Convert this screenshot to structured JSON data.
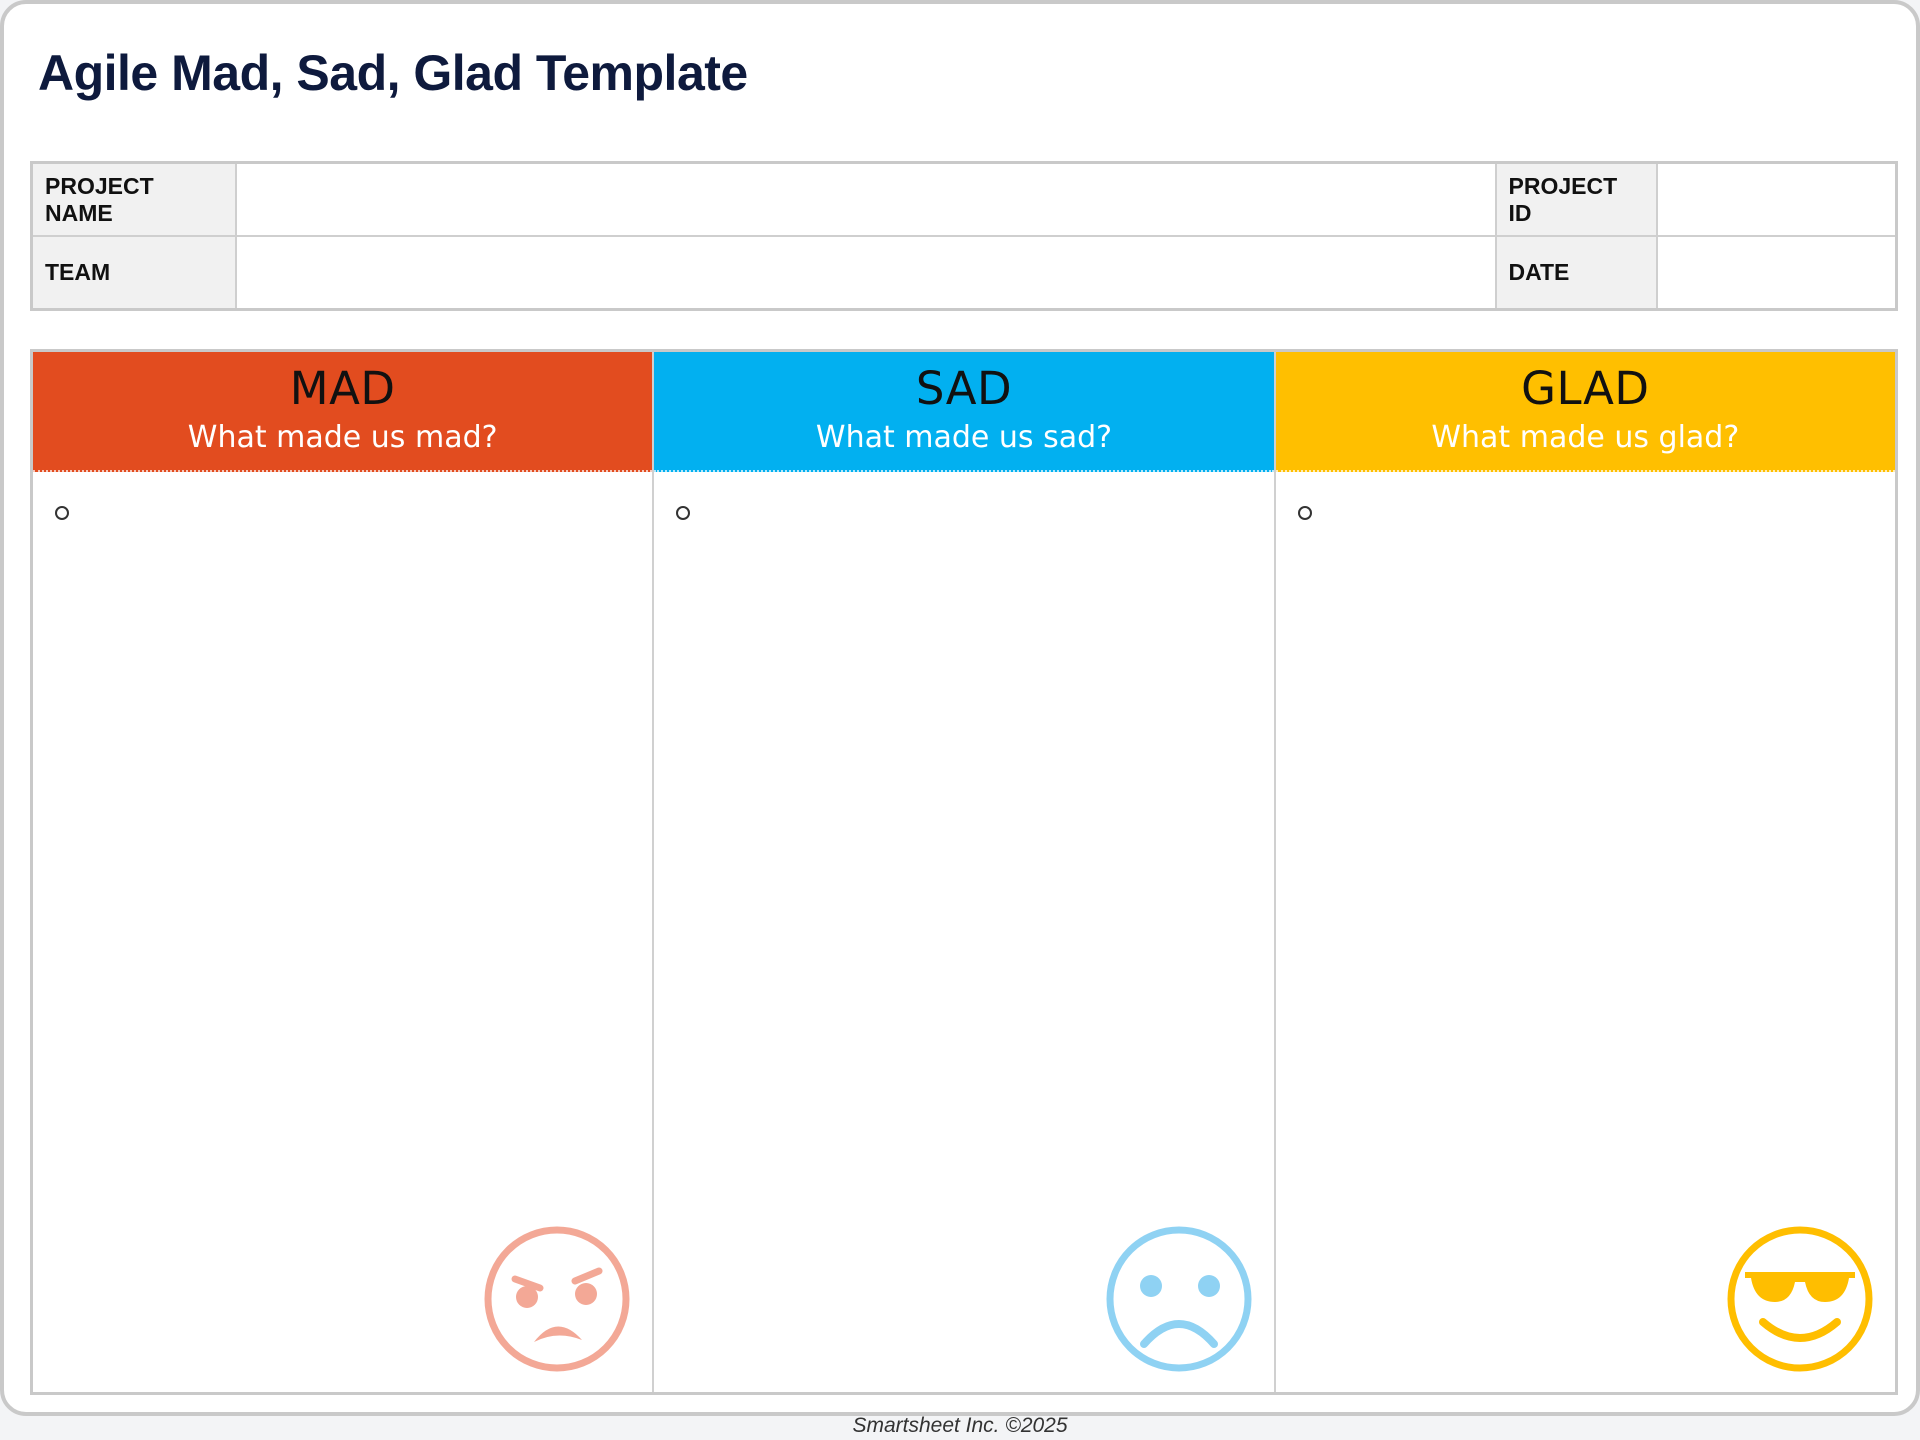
{
  "title": "Agile Mad, Sad, Glad Template",
  "info": {
    "project_name_label": "PROJECT NAME",
    "project_name_value": "",
    "project_id_label": "PROJECT ID",
    "project_id_value": "",
    "team_label": "TEAM",
    "team_value": "",
    "date_label": "DATE",
    "date_value": ""
  },
  "columns": [
    {
      "title": "MAD",
      "subtitle": "What made us mad?",
      "color": "#e24c1f",
      "icon": "angry-face-icon"
    },
    {
      "title": "SAD",
      "subtitle": "What made us sad?",
      "color": "#02b0f0",
      "icon": "sad-face-icon"
    },
    {
      "title": "GLAD",
      "subtitle": "What made us glad?",
      "color": "#ffbf00",
      "icon": "sunglasses-face-icon"
    }
  ],
  "footer": "Smartsheet Inc. ©2025"
}
